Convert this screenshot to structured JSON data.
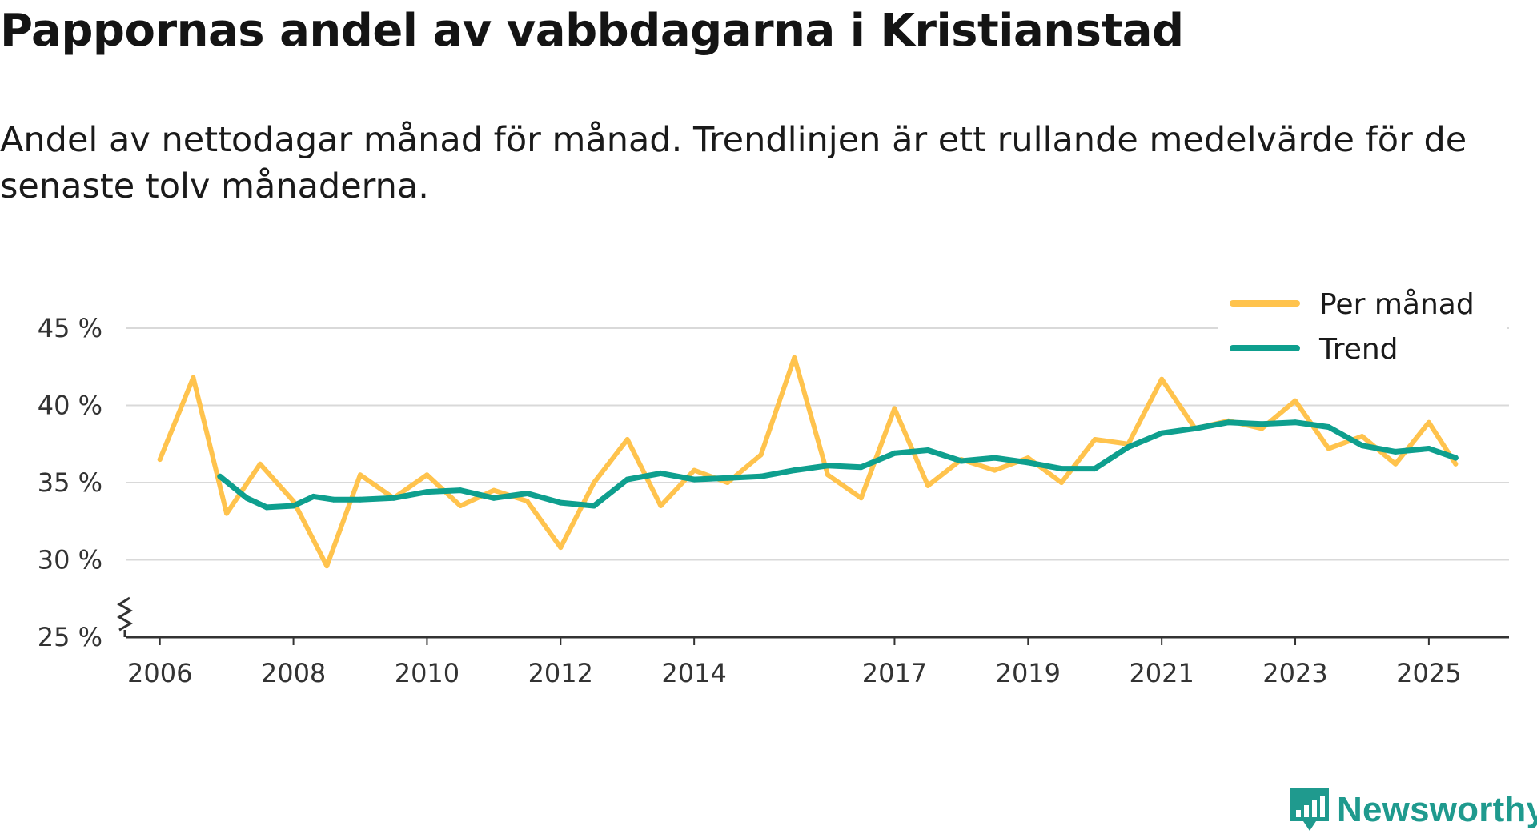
{
  "title": "Pappornas andel av vabbdagarna i Kristianstad",
  "subtitle": "Andel av nettodagar månad för månad. Trendlinjen är ett rullande medelvärde för de senaste tolv månaderna.",
  "brand": "Newsworthy",
  "colors": {
    "monthly": "#ffc34d",
    "trend": "#0e9f8e",
    "grid": "#d9d9d9",
    "axis": "#333333",
    "brand": "#1f9a8e"
  },
  "chart_data": {
    "type": "line",
    "x_range": [
      2005.5,
      2026.2
    ],
    "ylim": [
      25,
      45
    ],
    "y_ticks": [
      25,
      30,
      35,
      40,
      45
    ],
    "y_tick_labels": [
      "25 %",
      "30 %",
      "35 %",
      "40 %",
      "45 %"
    ],
    "y_axis_break": true,
    "x_ticks": [
      2006,
      2008,
      2010,
      2012,
      2014,
      2017,
      2019,
      2021,
      2023,
      2025
    ],
    "x_tick_labels": [
      "2006",
      "2008",
      "2010",
      "2012",
      "2014",
      "2017",
      "2019",
      "2021",
      "2023",
      "2025"
    ],
    "grid": "horizontal",
    "legend_position": "top-right",
    "series": [
      {
        "name": "Per månad",
        "x": [
          2006.0,
          2006.5,
          2007.0,
          2007.5,
          2008.0,
          2008.5,
          2009.0,
          2009.5,
          2010.0,
          2010.5,
          2011.0,
          2011.5,
          2012.0,
          2012.5,
          2013.0,
          2013.5,
          2014.0,
          2014.5,
          2015.0,
          2015.5,
          2016.0,
          2016.5,
          2017.0,
          2017.5,
          2018.0,
          2018.5,
          2019.0,
          2019.5,
          2020.0,
          2020.5,
          2021.0,
          2021.5,
          2022.0,
          2022.5,
          2023.0,
          2023.5,
          2024.0,
          2024.5,
          2025.0,
          2025.4
        ],
        "y": [
          36.5,
          41.8,
          33.0,
          36.2,
          33.8,
          29.6,
          35.5,
          34.0,
          35.5,
          33.5,
          34.5,
          33.8,
          30.8,
          35.0,
          37.8,
          33.5,
          35.8,
          35.0,
          36.8,
          43.1,
          35.5,
          34.0,
          39.8,
          34.8,
          36.5,
          35.8,
          36.6,
          35.0,
          37.8,
          37.5,
          41.7,
          38.5,
          39.0,
          38.5,
          40.3,
          37.2,
          38.0,
          36.2,
          38.9,
          36.2
        ]
      },
      {
        "name": "Trend",
        "x": [
          2006.9,
          2007.3,
          2007.6,
          2008.0,
          2008.3,
          2008.6,
          2009.0,
          2009.5,
          2010.0,
          2010.5,
          2011.0,
          2011.5,
          2012.0,
          2012.5,
          2013.0,
          2013.5,
          2014.0,
          2014.5,
          2015.0,
          2015.5,
          2016.0,
          2016.5,
          2017.0,
          2017.5,
          2018.0,
          2018.5,
          2019.0,
          2019.5,
          2020.0,
          2020.5,
          2021.0,
          2021.5,
          2022.0,
          2022.5,
          2023.0,
          2023.5,
          2024.0,
          2024.5,
          2025.0,
          2025.4
        ],
        "y": [
          35.4,
          34.0,
          33.4,
          33.5,
          34.1,
          33.9,
          33.9,
          34.0,
          34.4,
          34.5,
          34.0,
          34.3,
          33.7,
          33.5,
          35.2,
          35.6,
          35.2,
          35.3,
          35.4,
          35.8,
          36.1,
          36.0,
          36.9,
          37.1,
          36.4,
          36.6,
          36.3,
          35.9,
          35.9,
          37.3,
          38.2,
          38.5,
          38.9,
          38.8,
          38.9,
          38.6,
          37.4,
          37.0,
          37.2,
          36.6
        ]
      }
    ]
  }
}
